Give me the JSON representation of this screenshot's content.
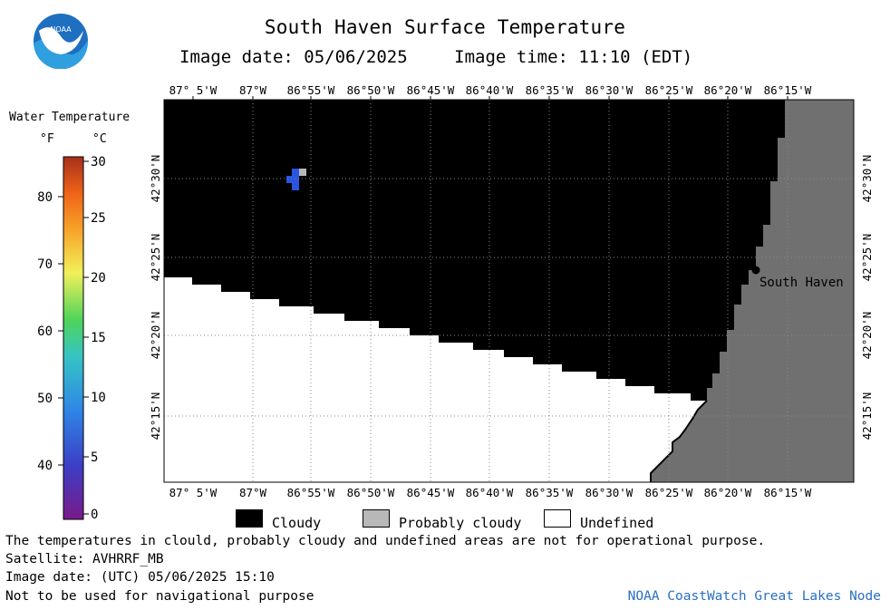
{
  "header": {
    "title": "South Haven Surface Temperature",
    "image_date_label": "Image date: 05/06/2025",
    "image_time_label": "Image time: 11:10 (EDT)"
  },
  "logo": {
    "text": "NOAA"
  },
  "legend": {
    "title": "Water Temperature",
    "unit_f": "°F",
    "unit_c": "°C",
    "fahrenheit_ticks": [
      "80",
      "70",
      "60",
      "50",
      "40"
    ],
    "celsius_ticks": [
      "30",
      "25",
      "20",
      "15",
      "10",
      "5",
      "0"
    ]
  },
  "map": {
    "top_longitudes": [
      "87° 5'W",
      "87°W",
      "86°55'W",
      "86°50'W",
      "86°45'W",
      "86°40'W",
      "86°35'W",
      "86°30'W",
      "86°25'W",
      "86°20'W",
      "86°15'W"
    ],
    "bottom_longitudes": [
      "87° 5'W",
      "87°W",
      "86°55'W",
      "86°50'W",
      "86°45'W",
      "86°40'W",
      "86°35'W",
      "86°30'W",
      "86°25'W",
      "86°20'W",
      "86°15'W"
    ],
    "latitudes": [
      "42°30'N",
      "42°25'N",
      "42°20'N",
      "42°15'N"
    ],
    "city_label": "South Haven",
    "colors": {
      "cloudy": "#000000",
      "land": "#707070",
      "undefined": "#ffffff",
      "probably_cloudy": "#b8b8b8",
      "water_pixel": "#2a55e0"
    }
  },
  "key": {
    "cloudy": "Cloudy",
    "probably_cloudy": "Probably cloudy",
    "undefined": "Undefined"
  },
  "notes": {
    "disclaimer": "The temperatures in clould, probably cloudy and undefined areas are not for operational purpose.",
    "satellite": "Satellite: AVHRRF_MB",
    "utc_date": "Image date: (UTC) 05/06/2025  15:10",
    "nav_warning": "Not to be used for navigational purpose",
    "credit": "NOAA CoastWatch Great Lakes Node"
  }
}
